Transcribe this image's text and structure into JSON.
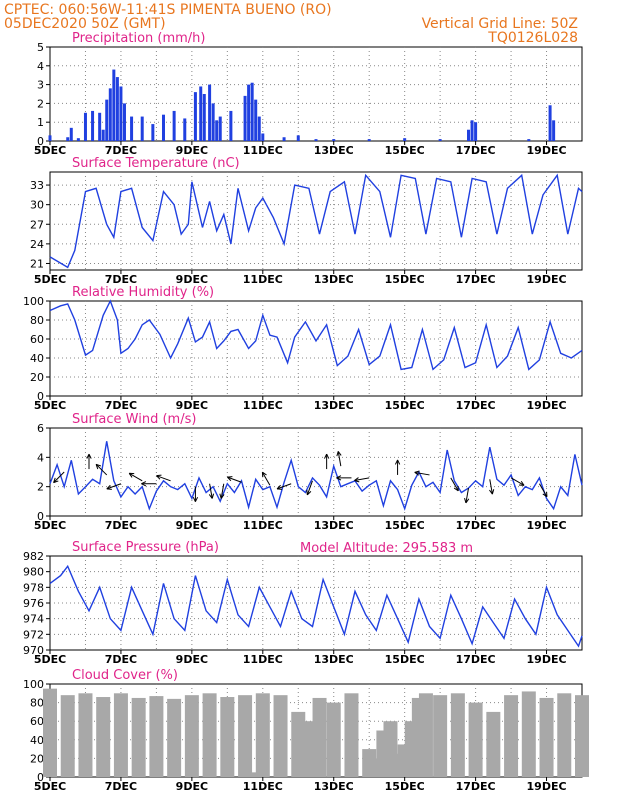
{
  "header": {
    "line1": "CPTEC:   060:56W-11:41S   PIMENTA BUENO (RO)",
    "line2_left": "05DEC2020 50Z (GMT)",
    "line2_right": "Vertical Grid Line: 50Z",
    "line3_right": "TQ0126L028"
  },
  "x_axis": {
    "ticks": [
      5,
      7,
      9,
      11,
      13,
      15,
      17,
      19
    ],
    "labels": [
      "5DEC",
      "7DEC",
      "9DEC",
      "11DEC",
      "13DEC",
      "15DEC",
      "17DEC",
      "19DEC"
    ],
    "xlim": [
      5,
      20
    ]
  },
  "colors": {
    "line": "#2040e0",
    "cloud": "#a8a8a8",
    "title": "#e0248a",
    "header": "#e8761f"
  },
  "chart_data": [
    {
      "type": "bar",
      "title": "Precipitation (mm/h)",
      "ylim": [
        0,
        5
      ],
      "yticks": [
        0,
        1,
        2,
        3,
        4,
        5
      ],
      "x": [
        5.0,
        5.5,
        5.6,
        5.8,
        6.0,
        6.2,
        6.4,
        6.5,
        6.6,
        6.7,
        6.8,
        6.9,
        7.0,
        7.1,
        7.3,
        7.6,
        7.9,
        8.2,
        8.5,
        8.8,
        9.1,
        9.25,
        9.35,
        9.5,
        9.6,
        9.7,
        9.8,
        10.1,
        10.5,
        10.6,
        10.7,
        10.8,
        10.9,
        11.0,
        11.6,
        12.0,
        12.5,
        13.0,
        14.0,
        15.0,
        16.0,
        16.8,
        16.9,
        17.0,
        18.5,
        19.1,
        19.2
      ],
      "values": [
        0.3,
        0.2,
        0.7,
        0.15,
        1.5,
        1.6,
        1.5,
        0.6,
        2.2,
        2.8,
        3.8,
        3.4,
        2.9,
        2.0,
        1.3,
        1.3,
        0.9,
        1.4,
        1.6,
        1.2,
        2.6,
        2.9,
        2.5,
        3.0,
        2.0,
        1.1,
        1.3,
        1.6,
        2.4,
        3.0,
        3.1,
        2.2,
        1.3,
        0.4,
        0.2,
        0.3,
        0.1,
        0.1,
        0.1,
        0.15,
        0.1,
        0.6,
        1.1,
        1.0,
        0.1,
        1.9,
        1.1
      ]
    },
    {
      "type": "line",
      "title": "Surface Temperature (nC)",
      "ylim": [
        20,
        35
      ],
      "yticks": [
        21,
        24,
        27,
        30,
        33
      ],
      "x": [
        5.0,
        5.5,
        5.7,
        6.0,
        6.3,
        6.6,
        6.8,
        7.0,
        7.3,
        7.6,
        7.9,
        8.2,
        8.5,
        8.7,
        8.9,
        9.0,
        9.3,
        9.5,
        9.7,
        9.9,
        10.1,
        10.3,
        10.6,
        10.8,
        11.0,
        11.3,
        11.6,
        11.9,
        12.3,
        12.6,
        12.9,
        13.3,
        13.6,
        13.9,
        14.3,
        14.6,
        14.9,
        15.3,
        15.6,
        15.9,
        16.3,
        16.6,
        16.9,
        17.3,
        17.6,
        17.9,
        18.3,
        18.6,
        18.9,
        19.3,
        19.6,
        19.9,
        20.0
      ],
      "values": [
        22.0,
        20.4,
        23.0,
        32.0,
        32.5,
        27.0,
        25.0,
        32.0,
        32.5,
        26.5,
        24.5,
        32.0,
        30.0,
        25.5,
        27.0,
        33.5,
        26.5,
        30.5,
        26.0,
        28.5,
        24.0,
        32.5,
        26.0,
        29.5,
        31.0,
        28.0,
        24.0,
        33.0,
        32.5,
        25.5,
        32.0,
        33.5,
        25.5,
        34.5,
        32.0,
        25.0,
        34.5,
        34.0,
        25.5,
        34.0,
        33.5,
        25.0,
        34.0,
        33.5,
        25.5,
        32.5,
        34.5,
        25.5,
        31.5,
        34.5,
        25.5,
        32.5,
        32.0
      ]
    },
    {
      "type": "line",
      "title": "Relative Humidity (%)",
      "ylim": [
        0,
        100
      ],
      "yticks": [
        0,
        20,
        40,
        60,
        80,
        100
      ],
      "x": [
        5.0,
        5.3,
        5.5,
        5.7,
        6.0,
        6.2,
        6.5,
        6.7,
        6.9,
        7.0,
        7.2,
        7.4,
        7.6,
        7.8,
        8.1,
        8.4,
        8.6,
        8.9,
        9.1,
        9.3,
        9.5,
        9.7,
        9.9,
        10.1,
        10.3,
        10.6,
        10.8,
        11.0,
        11.2,
        11.4,
        11.7,
        11.9,
        12.2,
        12.5,
        12.8,
        13.1,
        13.4,
        13.7,
        14.0,
        14.3,
        14.6,
        14.9,
        15.2,
        15.5,
        15.8,
        16.1,
        16.4,
        16.7,
        17.0,
        17.3,
        17.6,
        17.9,
        18.2,
        18.5,
        18.8,
        19.1,
        19.4,
        19.7,
        20.0
      ],
      "values": [
        90,
        95,
        97,
        80,
        43,
        48,
        85,
        100,
        80,
        45,
        50,
        60,
        75,
        80,
        65,
        40,
        55,
        82,
        57,
        62,
        78,
        50,
        58,
        68,
        70,
        50,
        58,
        85,
        64,
        62,
        35,
        62,
        78,
        58,
        75,
        32,
        42,
        70,
        33,
        42,
        75,
        28,
        30,
        70,
        28,
        38,
        72,
        30,
        35,
        75,
        30,
        42,
        72,
        28,
        38,
        78,
        45,
        40,
        48
      ]
    },
    {
      "type": "line",
      "title": "Surface Wind (m/s)",
      "ylim": [
        0,
        6
      ],
      "yticks": [
        0,
        2,
        4,
        6
      ],
      "x": [
        5.0,
        5.2,
        5.4,
        5.6,
        5.8,
        6.0,
        6.2,
        6.4,
        6.6,
        6.8,
        7.0,
        7.2,
        7.4,
        7.6,
        7.8,
        8.0,
        8.2,
        8.4,
        8.6,
        8.8,
        9.0,
        9.2,
        9.4,
        9.6,
        9.8,
        10.0,
        10.2,
        10.4,
        10.6,
        10.8,
        11.0,
        11.2,
        11.4,
        11.6,
        11.8,
        12.0,
        12.2,
        12.4,
        12.6,
        12.8,
        13.0,
        13.2,
        13.4,
        13.6,
        13.8,
        14.0,
        14.2,
        14.4,
        14.6,
        14.8,
        15.0,
        15.2,
        15.4,
        15.6,
        15.8,
        16.0,
        16.2,
        16.4,
        16.6,
        16.8,
        17.0,
        17.2,
        17.4,
        17.6,
        17.8,
        18.0,
        18.2,
        18.4,
        18.6,
        18.8,
        19.0,
        19.2,
        19.4,
        19.6,
        19.8,
        20.0
      ],
      "values": [
        2.2,
        3.5,
        2.0,
        3.8,
        1.5,
        2.0,
        2.5,
        2.2,
        5.1,
        2.4,
        1.3,
        2.0,
        1.5,
        2.0,
        0.5,
        1.7,
        2.4,
        2.0,
        1.8,
        2.2,
        1.2,
        2.6,
        1.6,
        2.0,
        1.0,
        2.2,
        1.6,
        2.4,
        0.6,
        2.5,
        1.8,
        2.0,
        0.6,
        2.3,
        3.8,
        2.0,
        1.6,
        2.6,
        2.1,
        1.3,
        3.4,
        2.0,
        2.2,
        2.4,
        1.7,
        2.1,
        2.4,
        0.7,
        2.4,
        1.8,
        0.5,
        2.1,
        3.0,
        2.0,
        2.3,
        1.6,
        4.5,
        2.4,
        1.6,
        1.9,
        2.4,
        2.0,
        4.7,
        2.5,
        2.1,
        2.8,
        1.4,
        2.0,
        1.8,
        2.6,
        1.2,
        0.5,
        2.0,
        1.4,
        4.2,
        2.1
      ],
      "arrows": [
        {
          "x": 5.4,
          "y": 3.0,
          "dir": 225
        },
        {
          "x": 6.1,
          "y": 3.2,
          "dir": 90
        },
        {
          "x": 6.6,
          "y": 2.8,
          "dir": 135
        },
        {
          "x": 7.0,
          "y": 2.2,
          "dir": 200
        },
        {
          "x": 7.6,
          "y": 2.4,
          "dir": 150
        },
        {
          "x": 8.0,
          "y": 2.2,
          "dir": 180
        },
        {
          "x": 8.4,
          "y": 2.4,
          "dir": 160
        },
        {
          "x": 9.1,
          "y": 2.0,
          "dir": 270
        },
        {
          "x": 9.5,
          "y": 2.2,
          "dir": 280
        },
        {
          "x": 9.9,
          "y": 2.2,
          "dir": 260
        },
        {
          "x": 10.4,
          "y": 2.3,
          "dir": 160
        },
        {
          "x": 11.2,
          "y": 2.1,
          "dir": 120
        },
        {
          "x": 11.8,
          "y": 2.2,
          "dir": 200
        },
        {
          "x": 12.4,
          "y": 2.4,
          "dir": 250
        },
        {
          "x": 12.8,
          "y": 3.2,
          "dir": 90
        },
        {
          "x": 13.2,
          "y": 3.4,
          "dir": 100
        },
        {
          "x": 13.5,
          "y": 2.6,
          "dir": 180
        },
        {
          "x": 14.0,
          "y": 2.6,
          "dir": 190
        },
        {
          "x": 14.8,
          "y": 2.8,
          "dir": 90
        },
        {
          "x": 15.7,
          "y": 2.8,
          "dir": 170
        },
        {
          "x": 16.3,
          "y": 2.6,
          "dir": 300
        },
        {
          "x": 16.8,
          "y": 1.9,
          "dir": 260
        },
        {
          "x": 17.4,
          "y": 2.5,
          "dir": 280
        },
        {
          "x": 18.0,
          "y": 2.6,
          "dir": 330
        },
        {
          "x": 18.8,
          "y": 2.2,
          "dir": 300
        }
      ]
    },
    {
      "type": "line",
      "title": "Surface Pressure (hPa)",
      "ylim": [
        970,
        982
      ],
      "yticks": [
        970,
        972,
        974,
        976,
        978,
        980,
        982
      ],
      "x": [
        5.0,
        5.3,
        5.5,
        5.8,
        6.1,
        6.4,
        6.7,
        7.0,
        7.3,
        7.6,
        7.9,
        8.2,
        8.5,
        8.8,
        9.1,
        9.4,
        9.7,
        10.0,
        10.3,
        10.6,
        10.9,
        11.2,
        11.5,
        11.8,
        12.1,
        12.4,
        12.7,
        13.0,
        13.3,
        13.6,
        13.9,
        14.2,
        14.5,
        14.8,
        15.1,
        15.4,
        15.7,
        16.0,
        16.3,
        16.6,
        16.9,
        17.2,
        17.5,
        17.8,
        18.1,
        18.4,
        18.7,
        19.0,
        19.3,
        19.6,
        19.9,
        20.0
      ],
      "values": [
        978.5,
        979.5,
        980.7,
        977.5,
        975.0,
        978.0,
        974.0,
        972.5,
        978.0,
        975.0,
        972.0,
        978.5,
        974.0,
        972.5,
        979.5,
        975.0,
        973.5,
        979.0,
        974.5,
        973.0,
        978.0,
        975.5,
        973.0,
        977.5,
        974.0,
        973.0,
        979.0,
        975.5,
        972.0,
        977.5,
        974.5,
        972.5,
        977.0,
        974.0,
        971.0,
        976.5,
        973.0,
        971.5,
        977.0,
        974.0,
        970.8,
        975.5,
        973.5,
        971.5,
        976.5,
        974.0,
        972.0,
        978.0,
        974.5,
        972.5,
        970.5,
        971.8
      ]
    },
    {
      "type": "bar",
      "title": "Cloud Cover (%)",
      "ylim": [
        0,
        100
      ],
      "yticks": [
        0,
        20,
        40,
        60,
        80,
        100
      ],
      "x": [
        5.0,
        5.5,
        6.0,
        6.5,
        7.0,
        7.5,
        8.0,
        8.5,
        9.0,
        9.5,
        10.0,
        10.5,
        10.65,
        11.0,
        11.5,
        12.0,
        12.3,
        12.6,
        13.0,
        13.5,
        14.0,
        14.2,
        14.4,
        14.6,
        14.9,
        15.0,
        15.2,
        15.4,
        15.6,
        16.0,
        16.5,
        17.0,
        17.5,
        18.0,
        18.5,
        19.0,
        19.5,
        20.0
      ],
      "values": [
        95,
        88,
        90,
        86,
        90,
        85,
        87,
        84,
        88,
        90,
        86,
        88,
        5,
        90,
        88,
        70,
        60,
        85,
        80,
        90,
        30,
        20,
        50,
        60,
        25,
        35,
        60,
        85,
        90,
        88,
        90,
        80,
        70,
        88,
        92,
        85,
        90,
        88
      ]
    }
  ],
  "annotations": {
    "model_altitude": "Model Altitude: 295.583 m"
  }
}
